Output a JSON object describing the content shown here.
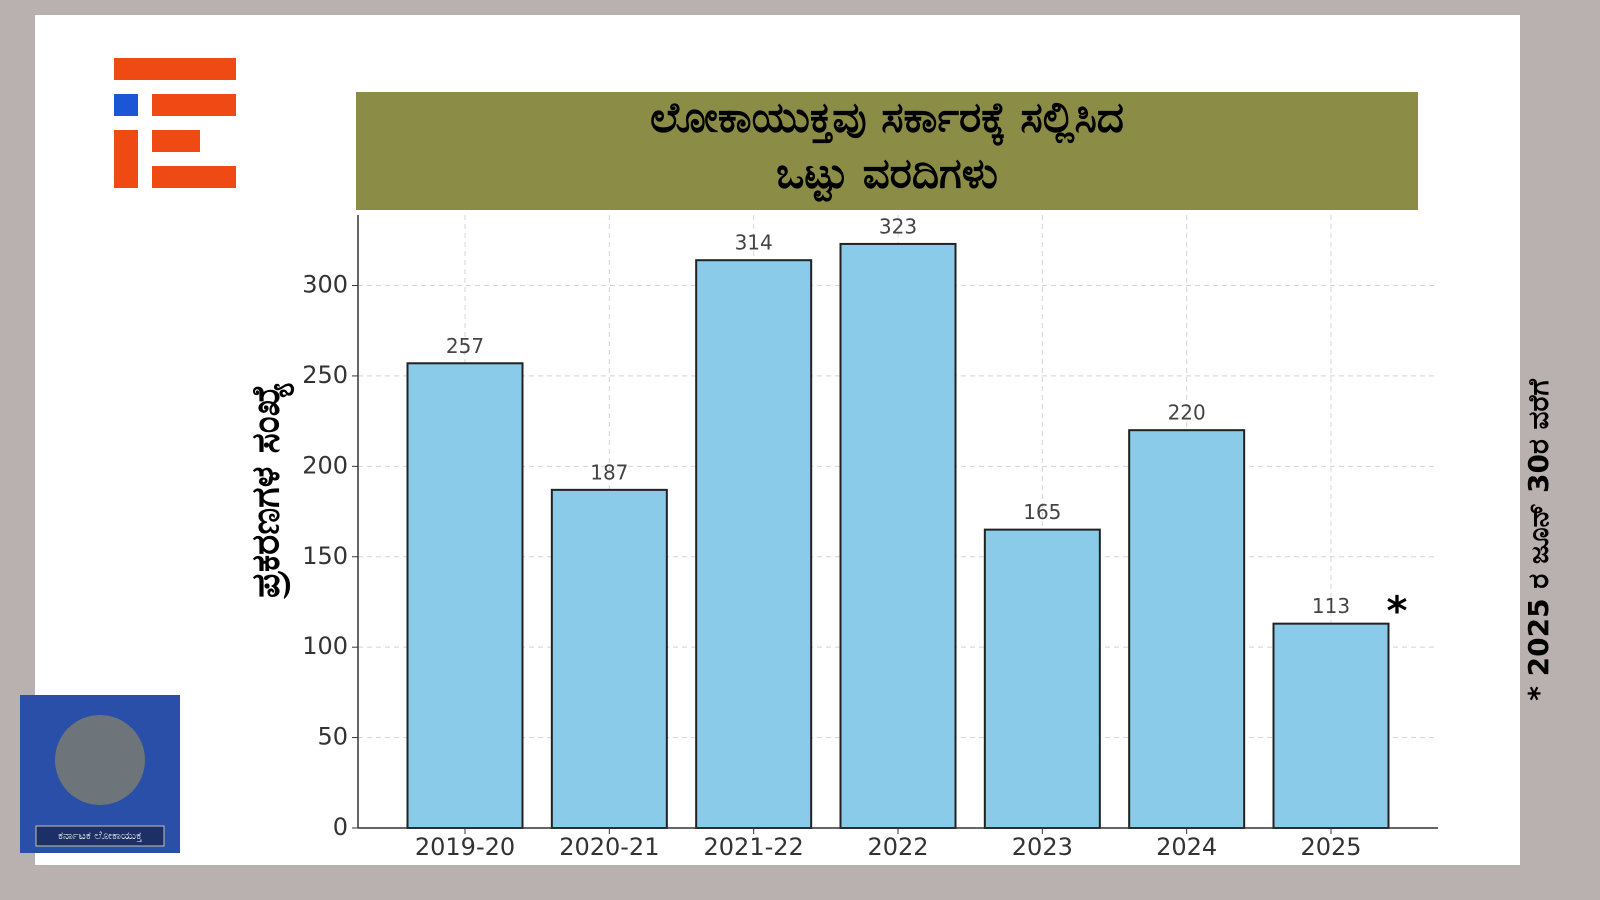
{
  "chart_data": {
    "type": "bar",
    "title_lines": [
      "ಲೋಕಾಯುಕ್ತವು ಸರ್ಕಾರಕ್ಕೆ ಸಲ್ಲಿಸಿದ",
      "ಒಟ್ಟು ವರದಿಗಳು"
    ],
    "y_label": "ಪ್ರಕರಣಗಳ ಸಂಖ್ಯೆ",
    "footnote": "* 2025 ರ ಜೂನ್ 30ರ ವರೆಗೆ",
    "annotation": "*",
    "categories": [
      "2019-20",
      "2020-21",
      "2021-22",
      "2022",
      "2023",
      "2024",
      "2025"
    ],
    "values": [
      257,
      187,
      314,
      323,
      165,
      220,
      113
    ],
    "color": "#89cbe8",
    "ylim": [
      0,
      339
    ],
    "yticks": [
      0,
      50,
      100,
      150,
      200,
      250,
      300
    ],
    "grid": true
  },
  "emblem_label": "ಕರ್ನಾಟಕ ಲೋಕಾಯುಕ್ತ"
}
